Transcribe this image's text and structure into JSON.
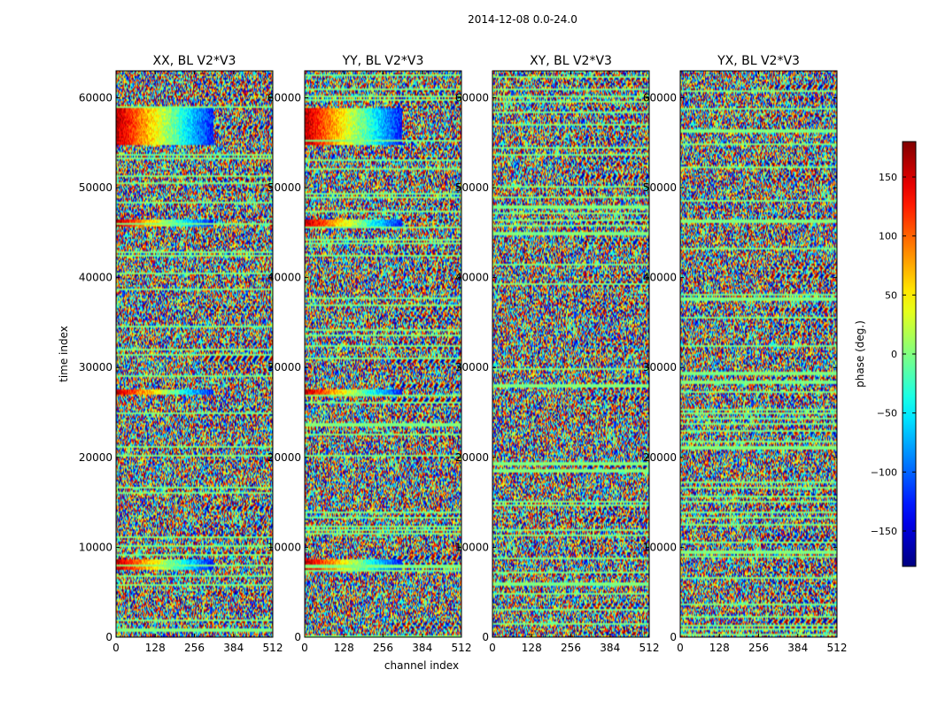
{
  "chart_data": {
    "type": "heatmap",
    "suptitle": "2014-12-08 0.0-24.0",
    "panels": [
      {
        "title": "XX, BL V2*V3",
        "pol": "XX"
      },
      {
        "title": "YY, BL V2*V3",
        "pol": "YY"
      },
      {
        "title": "XY, BL V2*V3",
        "pol": "XY"
      },
      {
        "title": "YX, BL V2*V3",
        "pol": "YX"
      }
    ],
    "xlabel": "channel index",
    "ylabel": "time index",
    "xlim": [
      0,
      512
    ],
    "ylim": [
      0,
      63000
    ],
    "xticks": [
      0,
      128,
      256,
      384,
      512
    ],
    "yticks": [
      0,
      10000,
      20000,
      30000,
      40000,
      50000,
      60000
    ],
    "colorbar": {
      "label": "phase (deg.)",
      "range": [
        -180,
        180
      ],
      "ticks": [
        -150,
        -100,
        -50,
        0,
        50,
        100,
        150
      ],
      "tick_labels": [
        "−150",
        "−100",
        "−50",
        "0",
        "50",
        "100",
        "150"
      ],
      "colormap": "jet"
    }
  }
}
